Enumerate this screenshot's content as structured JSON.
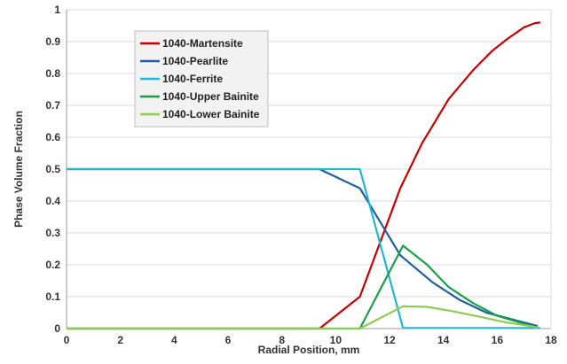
{
  "chart_data": {
    "type": "line",
    "title": "",
    "xlabel": "Radial Position, mm",
    "ylabel": "Phase Volume Fraction",
    "xlim": [
      0,
      18
    ],
    "ylim": [
      0,
      1
    ],
    "xticks": [
      0,
      2,
      4,
      6,
      8,
      10,
      12,
      14,
      16,
      18
    ],
    "yticks": [
      0,
      0.1,
      0.2,
      0.3,
      0.4,
      0.5,
      0.6,
      0.7,
      0.8,
      0.9,
      1
    ],
    "xtick_labels": [
      "0",
      "2",
      "4",
      "6",
      "8",
      "10",
      "12",
      "14",
      "16",
      "18"
    ],
    "ytick_labels": [
      "0",
      "0.1",
      "0.2",
      "0.3",
      "0.4",
      "0.5",
      "0.6",
      "0.7",
      "0.8",
      "0.9",
      "1"
    ],
    "grid": true,
    "legend_position": "top-left",
    "series": [
      {
        "name": "1040-Martensite",
        "color": "#c00000",
        "x": [
          0,
          9.4,
          10.9,
          12.4,
          13.2,
          14.2,
          15.1,
          15.8,
          16.4,
          17.0,
          17.4,
          17.6
        ],
        "y": [
          0,
          0,
          0.1,
          0.44,
          0.58,
          0.72,
          0.81,
          0.87,
          0.91,
          0.945,
          0.958,
          0.96
        ]
      },
      {
        "name": "1040-Pearlite",
        "color": "#1f5f9f",
        "x": [
          0,
          9.4,
          10.9,
          12.4,
          13.6,
          14.6,
          15.6,
          16.5,
          17.5
        ],
        "y": [
          0.5,
          0.5,
          0.44,
          0.23,
          0.145,
          0.09,
          0.05,
          0.03,
          0.008
        ]
      },
      {
        "name": "1040-Ferrite",
        "color": "#22b5d6",
        "x": [
          0,
          10.9,
          12.5,
          17.6
        ],
        "y": [
          0.5,
          0.5,
          0.002,
          0.002
        ]
      },
      {
        "name": "1040-Upper Bainite",
        "color": "#1a9e4a",
        "x": [
          0,
          10.9,
          12.5,
          13.4,
          14.2,
          15.1,
          16.0,
          17.0,
          17.5
        ],
        "y": [
          0,
          0,
          0.26,
          0.2,
          0.13,
          0.08,
          0.04,
          0.015,
          0.004
        ]
      },
      {
        "name": "1040-Lower Bainite",
        "color": "#8dcc4f",
        "x": [
          0,
          10.9,
          12.5,
          13.4,
          14.3,
          15.3,
          16.3,
          17.5
        ],
        "y": [
          0,
          0,
          0.07,
          0.068,
          0.055,
          0.038,
          0.02,
          0.004
        ]
      }
    ]
  }
}
